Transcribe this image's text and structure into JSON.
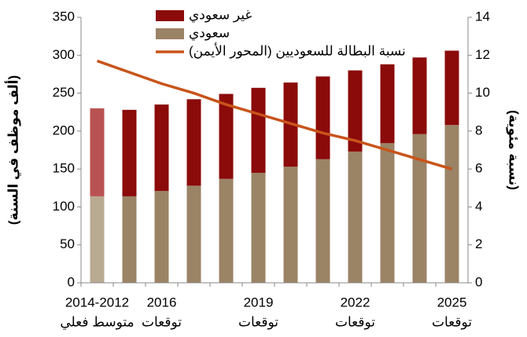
{
  "chart_data": {
    "type": "bar",
    "categories": [
      "2014-2012",
      null,
      "2016",
      null,
      null,
      "2019",
      null,
      null,
      "2022",
      null,
      null,
      "2025"
    ],
    "category_notes": [
      "متوسط فعلي",
      null,
      "توقعات",
      null,
      null,
      "توقعات",
      null,
      null,
      "توقعات",
      null,
      null,
      "توقعات"
    ],
    "series": [
      {
        "name": "سعودي",
        "color": "#9b8366",
        "actual_color": "#b9aa92",
        "values": [
          114,
          114,
          121,
          128,
          137,
          145,
          153,
          163,
          173,
          184,
          196,
          208
        ]
      },
      {
        "name": "غير سعودي",
        "color": "#8b0a0a",
        "actual_color": "#b85252",
        "values": [
          116,
          114,
          114,
          114,
          112,
          112,
          111,
          109,
          107,
          104,
          101,
          98
        ]
      },
      {
        "name": "نسبة البطالة للسعوديين (المحور الأيمن)",
        "type": "line",
        "axis": "y2",
        "color": "#c8541a",
        "values": [
          11.7,
          11.1,
          10.5,
          10.0,
          9.4,
          8.9,
          8.4,
          7.9,
          7.5,
          7.0,
          6.5,
          6.0
        ]
      }
    ],
    "stacked": true,
    "ylabel": "(ألف موظف في السنة)",
    "y2label": "(نسبة مئوية)",
    "ylim": [
      0,
      350
    ],
    "yticks": [
      0,
      50,
      100,
      150,
      200,
      250,
      300,
      350
    ],
    "y2lim": [
      0,
      14
    ],
    "y2ticks": [
      0,
      2,
      4,
      6,
      8,
      10,
      12,
      14
    ]
  }
}
